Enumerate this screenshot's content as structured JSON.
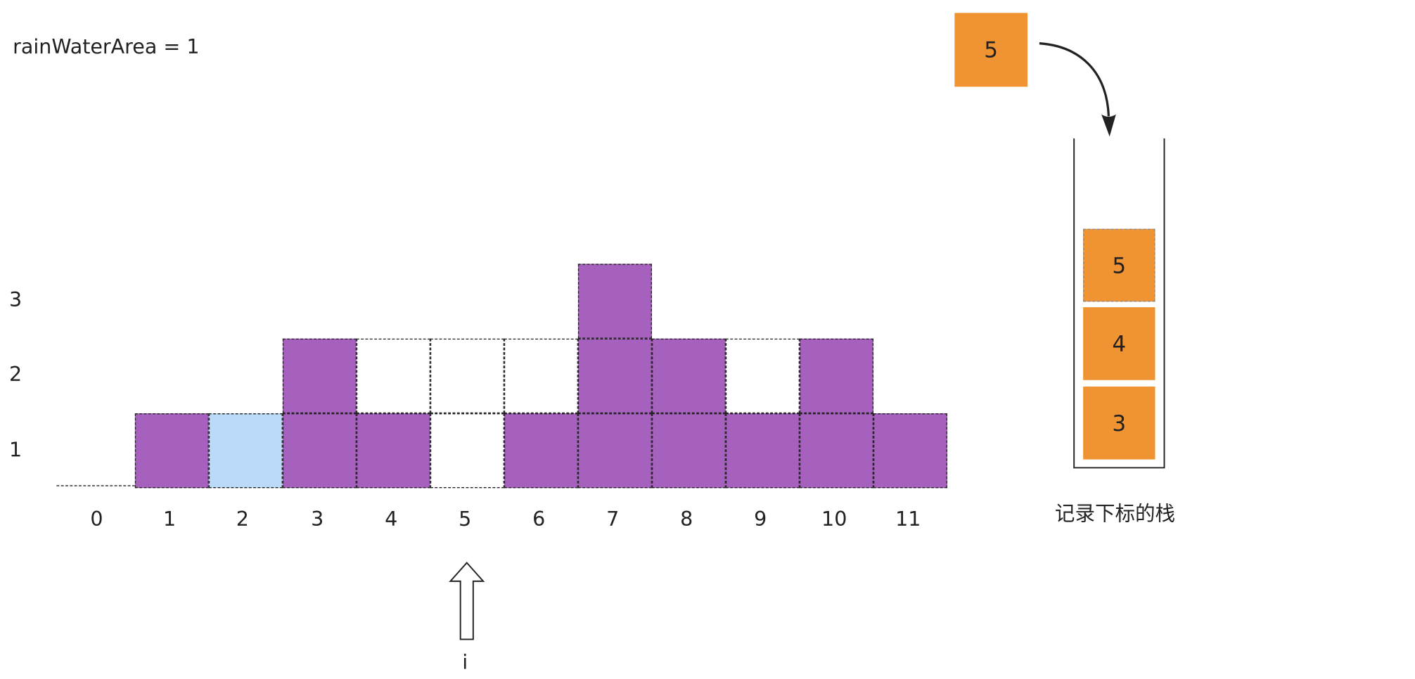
{
  "formula": "rainWaterArea = 1",
  "y_labels": [
    "1",
    "2",
    "3"
  ],
  "x_labels": [
    "0",
    "1",
    "2",
    "3",
    "4",
    "5",
    "6",
    "7",
    "8",
    "9",
    "10",
    "11"
  ],
  "heights": [
    0,
    1,
    0,
    2,
    1,
    0,
    1,
    3,
    2,
    1,
    2,
    1
  ],
  "water": [
    {
      "index": 2,
      "level": 1
    }
  ],
  "window_level": 2,
  "window_range": [
    3,
    10
  ],
  "pointer": {
    "label": "i",
    "index": 5
  },
  "incoming": {
    "value": "5"
  },
  "stack": {
    "caption": "记录下标的栈",
    "items": [
      "3",
      "4",
      "5"
    ]
  },
  "colors": {
    "bar": "#a561bd",
    "water": "#badaf7",
    "stack_item": "#f09433",
    "line": "#222222"
  }
}
